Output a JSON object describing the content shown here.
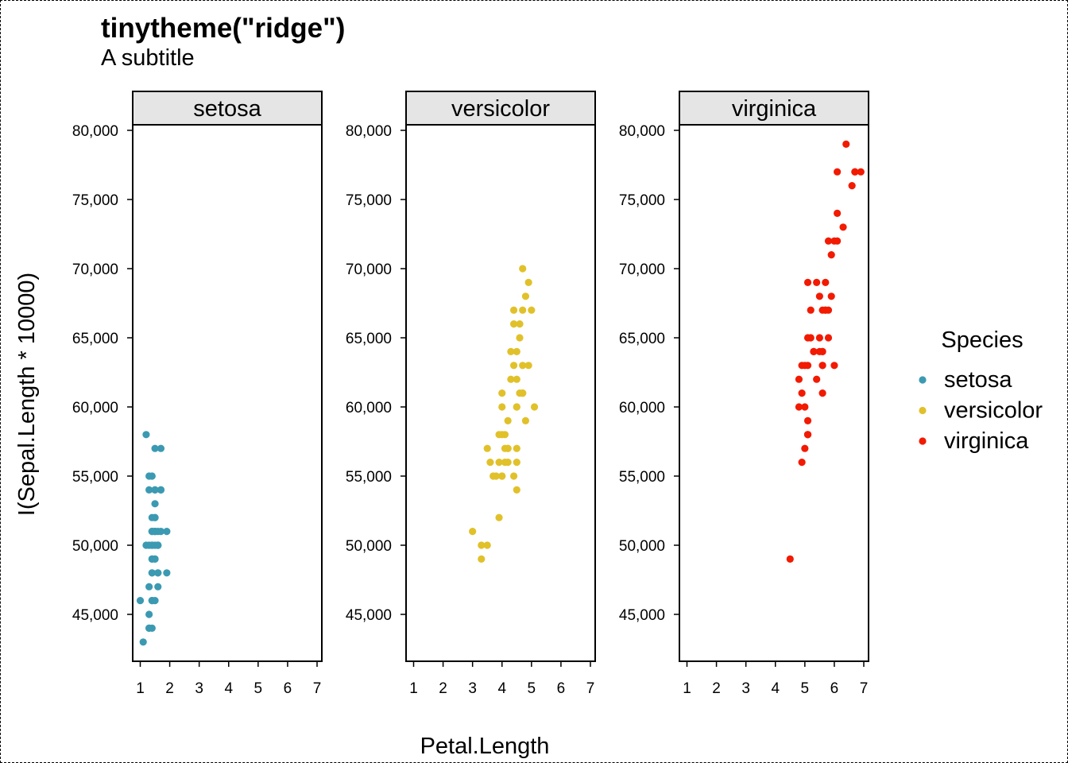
{
  "chart_data": {
    "type": "scatter",
    "title": "tinytheme(\"ridge\")",
    "subtitle": "A subtitle",
    "xlabel": "Petal.Length",
    "ylabel": "I(Sepal.Length * 10000)",
    "xlim": [
      1,
      7
    ],
    "ylim": [
      42000,
      82000
    ],
    "x_ticks": [
      1,
      2,
      3,
      4,
      5,
      6,
      7
    ],
    "y_ticks": [
      45000,
      50000,
      55000,
      60000,
      65000,
      70000,
      75000,
      80000
    ],
    "y_tick_labels": [
      "45,000",
      "50,000",
      "55,000",
      "60,000",
      "65,000",
      "70,000",
      "75,000",
      "80,000"
    ],
    "x_tick_labels": [
      "1",
      "2",
      "3",
      "4",
      "5",
      "6",
      "7"
    ],
    "grid": false,
    "facet_strip_color": "#e5e5e5",
    "legend": {
      "title": "Species",
      "position": "right",
      "entries": [
        {
          "label": "setosa",
          "color": "#3b9ab2"
        },
        {
          "label": "versicolor",
          "color": "#e1c12a"
        },
        {
          "label": "virginica",
          "color": "#f21a00"
        }
      ]
    },
    "panels": [
      {
        "name": "setosa",
        "color": "#3b9ab2",
        "points": [
          [
            1.4,
            51000
          ],
          [
            1.4,
            49000
          ],
          [
            1.3,
            47000
          ],
          [
            1.5,
            46000
          ],
          [
            1.4,
            50000
          ],
          [
            1.7,
            54000
          ],
          [
            1.4,
            46000
          ],
          [
            1.5,
            50000
          ],
          [
            1.4,
            44000
          ],
          [
            1.5,
            49000
          ],
          [
            1.5,
            54000
          ],
          [
            1.6,
            48000
          ],
          [
            1.4,
            48000
          ],
          [
            1.1,
            43000
          ],
          [
            1.2,
            58000
          ],
          [
            1.5,
            57000
          ],
          [
            1.3,
            54000
          ],
          [
            1.4,
            51000
          ],
          [
            1.7,
            57000
          ],
          [
            1.5,
            51000
          ],
          [
            1.7,
            54000
          ],
          [
            1.5,
            51000
          ],
          [
            1.0,
            46000
          ],
          [
            1.7,
            51000
          ],
          [
            1.9,
            48000
          ],
          [
            1.6,
            50000
          ],
          [
            1.6,
            50000
          ],
          [
            1.5,
            52000
          ],
          [
            1.4,
            52000
          ],
          [
            1.6,
            47000
          ],
          [
            1.6,
            48000
          ],
          [
            1.5,
            54000
          ],
          [
            1.5,
            52000
          ],
          [
            1.4,
            55000
          ],
          [
            1.5,
            49000
          ],
          [
            1.2,
            50000
          ],
          [
            1.3,
            55000
          ],
          [
            1.4,
            49000
          ],
          [
            1.3,
            44000
          ],
          [
            1.5,
            51000
          ],
          [
            1.3,
            50000
          ],
          [
            1.3,
            45000
          ],
          [
            1.3,
            44000
          ],
          [
            1.6,
            50000
          ],
          [
            1.9,
            51000
          ],
          [
            1.4,
            48000
          ],
          [
            1.6,
            51000
          ],
          [
            1.4,
            46000
          ],
          [
            1.5,
            53000
          ],
          [
            1.4,
            50000
          ]
        ]
      },
      {
        "name": "versicolor",
        "color": "#e1c12a",
        "points": [
          [
            4.7,
            70000
          ],
          [
            4.5,
            64000
          ],
          [
            4.9,
            69000
          ],
          [
            4.0,
            55000
          ],
          [
            4.6,
            65000
          ],
          [
            4.5,
            57000
          ],
          [
            4.7,
            63000
          ],
          [
            3.3,
            49000
          ],
          [
            4.6,
            66000
          ],
          [
            3.9,
            52000
          ],
          [
            3.5,
            50000
          ],
          [
            4.2,
            59000
          ],
          [
            4.0,
            60000
          ],
          [
            4.7,
            61000
          ],
          [
            3.6,
            56000
          ],
          [
            4.4,
            67000
          ],
          [
            4.5,
            56000
          ],
          [
            4.1,
            58000
          ],
          [
            4.5,
            62000
          ],
          [
            3.9,
            56000
          ],
          [
            4.8,
            59000
          ],
          [
            4.0,
            61000
          ],
          [
            4.9,
            63000
          ],
          [
            4.7,
            61000
          ],
          [
            4.3,
            64000
          ],
          [
            4.4,
            66000
          ],
          [
            4.8,
            68000
          ],
          [
            5.0,
            67000
          ],
          [
            4.5,
            60000
          ],
          [
            3.5,
            57000
          ],
          [
            3.8,
            55000
          ],
          [
            3.7,
            55000
          ],
          [
            3.9,
            58000
          ],
          [
            5.1,
            60000
          ],
          [
            4.5,
            54000
          ],
          [
            4.5,
            60000
          ],
          [
            4.7,
            67000
          ],
          [
            4.4,
            63000
          ],
          [
            4.1,
            56000
          ],
          [
            4.0,
            55000
          ],
          [
            4.4,
            55000
          ],
          [
            4.6,
            61000
          ],
          [
            4.0,
            58000
          ],
          [
            3.3,
            50000
          ],
          [
            4.2,
            56000
          ],
          [
            4.2,
            57000
          ],
          [
            4.2,
            57000
          ],
          [
            4.3,
            62000
          ],
          [
            3.0,
            51000
          ],
          [
            4.1,
            57000
          ]
        ]
      },
      {
        "name": "virginica",
        "color": "#f21a00",
        "points": [
          [
            6.0,
            63000
          ],
          [
            5.1,
            58000
          ],
          [
            5.9,
            71000
          ],
          [
            5.6,
            63000
          ],
          [
            5.8,
            65000
          ],
          [
            6.6,
            76000
          ],
          [
            4.5,
            49000
          ],
          [
            6.3,
            73000
          ],
          [
            5.8,
            67000
          ],
          [
            6.1,
            72000
          ],
          [
            5.1,
            65000
          ],
          [
            5.3,
            64000
          ],
          [
            5.5,
            68000
          ],
          [
            5.0,
            57000
          ],
          [
            5.1,
            58000
          ],
          [
            5.3,
            64000
          ],
          [
            5.5,
            65000
          ],
          [
            6.7,
            77000
          ],
          [
            6.9,
            77000
          ],
          [
            5.0,
            60000
          ],
          [
            5.7,
            69000
          ],
          [
            4.9,
            56000
          ],
          [
            6.7,
            77000
          ],
          [
            4.9,
            63000
          ],
          [
            5.7,
            67000
          ],
          [
            6.0,
            72000
          ],
          [
            4.8,
            62000
          ],
          [
            4.9,
            61000
          ],
          [
            5.6,
            64000
          ],
          [
            5.8,
            72000
          ],
          [
            6.1,
            74000
          ],
          [
            6.4,
            79000
          ],
          [
            5.6,
            64000
          ],
          [
            5.1,
            63000
          ],
          [
            5.6,
            61000
          ],
          [
            6.1,
            77000
          ],
          [
            5.6,
            63000
          ],
          [
            5.5,
            64000
          ],
          [
            4.8,
            60000
          ],
          [
            5.4,
            69000
          ],
          [
            5.6,
            67000
          ],
          [
            5.1,
            69000
          ],
          [
            5.1,
            58000
          ],
          [
            5.9,
            68000
          ],
          [
            5.7,
            67000
          ],
          [
            5.2,
            67000
          ],
          [
            5.0,
            63000
          ],
          [
            5.2,
            65000
          ],
          [
            5.4,
            62000
          ],
          [
            5.1,
            59000
          ]
        ]
      }
    ]
  }
}
